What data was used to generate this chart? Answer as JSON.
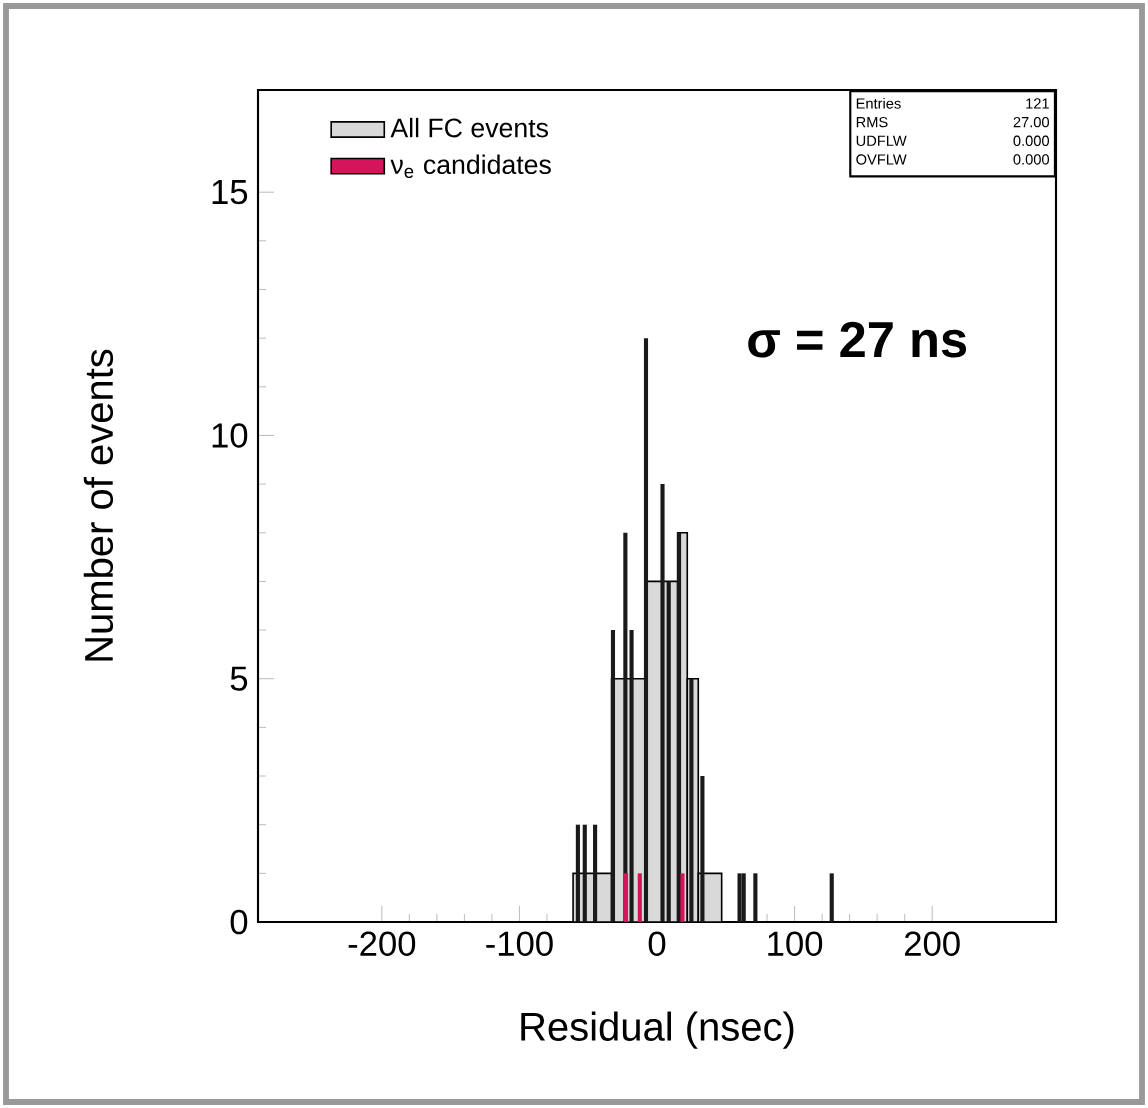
{
  "chart_data": {
    "type": "histogram",
    "xlabel": "Residual (nsec)",
    "ylabel": "Number of events",
    "xlim": [
      -290,
      290
    ],
    "ylim": [
      0,
      17.1
    ],
    "xticks": [
      {
        "value": -200,
        "label": "-200"
      },
      {
        "value": -100,
        "label": "-100"
      },
      {
        "value": 0,
        "label": "0"
      },
      {
        "value": 100,
        "label": "100"
      },
      {
        "value": 200,
        "label": "200"
      }
    ],
    "yticks": [
      {
        "value": 0,
        "label": "0"
      },
      {
        "value": 5,
        "label": "5"
      },
      {
        "value": 10,
        "label": "10"
      },
      {
        "value": 15,
        "label": "15"
      }
    ],
    "legend": "top left",
    "grid": false,
    "series": [
      {
        "name": "All FC events",
        "color": "#d9d9d9",
        "bins": [
          -61,
          -33,
          -8,
          15,
          22,
          30,
          47
        ],
        "values": [
          1,
          5,
          7,
          8,
          5,
          1
        ]
      },
      {
        "type": "bar",
        "color": "#1a1a1a",
        "x": [
          -57.5,
          -52.5,
          -45,
          -32,
          -23,
          -18.5,
          -8,
          4,
          8.5,
          16,
          25,
          33,
          60,
          63,
          71.5,
          127
        ],
        "values": [
          2,
          2,
          2,
          6,
          8,
          6,
          12,
          9,
          7,
          8,
          5,
          3,
          1,
          1,
          1,
          1
        ]
      },
      {
        "type": "bar",
        "name": "ν$_{e}$ candidates",
        "color": "#d6145a",
        "x": [
          -22.5,
          -12.5,
          18.5
        ],
        "values": [
          1,
          1,
          1
        ]
      }
    ],
    "annotations": [
      "σ = 27 ns",
      "Entries",
      "121",
      "RMS",
      "27.00",
      "UDFLW",
      "0.000",
      "OVFLW",
      "0.000"
    ]
  }
}
